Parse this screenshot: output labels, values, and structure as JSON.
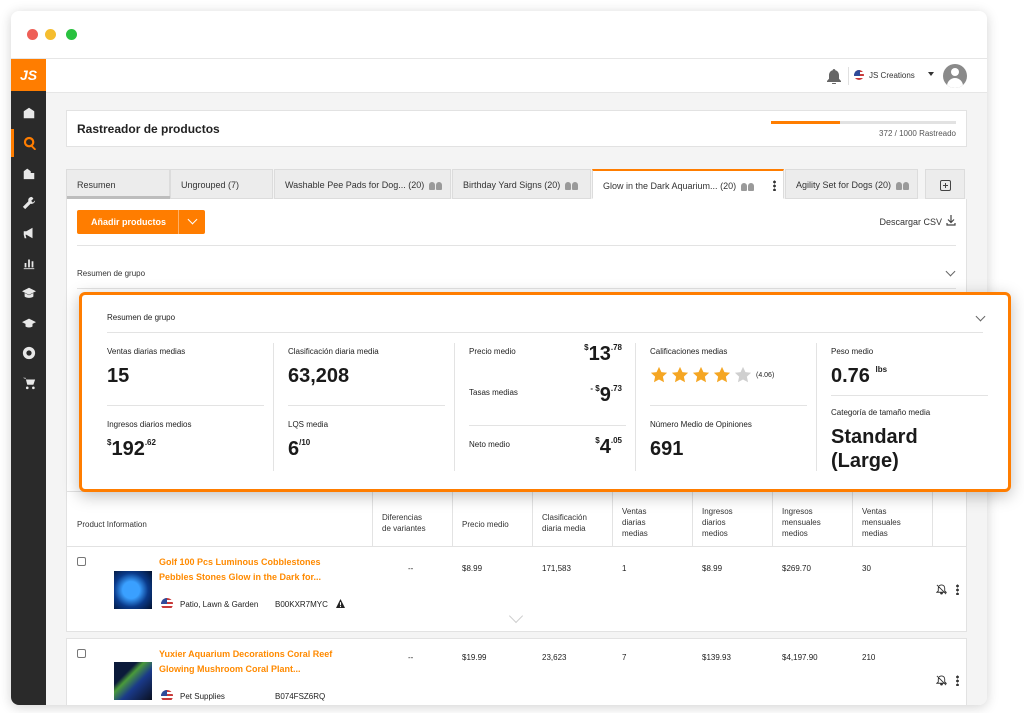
{
  "topbar": {
    "account_name": "JS Creations"
  },
  "page": {
    "title": "Rastreador de productos",
    "tracked_text": "372 / 1000 Rastreado",
    "tracked_fraction": 0.372
  },
  "tabs": [
    {
      "label": "Resumen",
      "count": "",
      "active": false
    },
    {
      "label": "Ungrouped (7)",
      "count": "",
      "active": false
    },
    {
      "label": "Washable Pee Pads for Dog...",
      "count": "(20)",
      "active": false
    },
    {
      "label": "Birthday Yard Signs",
      "count": "(20)",
      "active": false
    },
    {
      "label": "Glow in the Dark Aquarium...",
      "count": "(20)",
      "active": true
    },
    {
      "label": "Agility Set for Dogs",
      "count": "(20)",
      "active": false
    }
  ],
  "toolbar": {
    "add_products": "Añadir productos",
    "download_csv": "Descargar CSV"
  },
  "group_summary_label": "Resumen de grupo",
  "summary_popup": {
    "title": "Resumen de grupo",
    "avg_daily_sales_label": "Ventas diarias medias",
    "avg_daily_sales_value": "15",
    "avg_daily_revenue_label": "Ingresos diarios medios",
    "avg_daily_revenue_currency": "$",
    "avg_daily_revenue_int": "192",
    "avg_daily_revenue_dec": ".62",
    "avg_daily_rank_label": "Clasificación diaria media",
    "avg_daily_rank_value": "63,208",
    "lqs_label": "LQS media",
    "lqs_value": "6",
    "lqs_suffix": "/10",
    "avg_price_label": "Precio medio",
    "avg_price_currency": "$",
    "avg_price_int": "13",
    "avg_price_dec": ".78",
    "avg_fees_label": "Tasas medias",
    "avg_fees_sign": "- $",
    "avg_fees_int": "9",
    "avg_fees_dec": ".73",
    "avg_net_label": "Neto medio",
    "avg_net_currency": "$",
    "avg_net_int": "4",
    "avg_net_dec": ".05",
    "avg_rating_label": "Calificaciones medias",
    "avg_rating_value": 4.06,
    "avg_rating_text": "(4.06)",
    "avg_reviews_label": "Número Medio de Opiniones",
    "avg_reviews_value": "691",
    "avg_weight_label": "Peso medio",
    "avg_weight_value": "0.76",
    "avg_weight_unit": "lbs",
    "avg_size_label": "Categoría de tamaño media",
    "avg_size_value_line1": "Standard",
    "avg_size_value_line2": "(Large)"
  },
  "table": {
    "headers": {
      "product_information": "Product Information",
      "variant_differences": [
        "Diferencias",
        "de variantes"
      ],
      "avg_price": "Precio medio",
      "avg_daily_rank": [
        "Clasificación",
        "diaria media"
      ],
      "avg_daily_sales": [
        "Ventas",
        "diarias",
        "medias"
      ],
      "avg_daily_revenue": [
        "Ingresos",
        "diarios",
        "medios"
      ],
      "avg_monthly_revenue": [
        "Ingresos",
        "mensuales",
        "medios"
      ],
      "avg_monthly_sales": [
        "Ventas",
        "mensuales",
        "medias"
      ]
    },
    "rows": [
      {
        "title_line1": "Golf 100 Pcs Luminous Cobblestones",
        "title_line2": "Pebbles Stones Glow in the Dark for...",
        "category": "Patio, Lawn & Garden",
        "asin": "B00KXR7MYC",
        "variant_diff": "--",
        "price": "$8.99",
        "rank": "171,583",
        "daily_sales": "1",
        "daily_revenue": "$8.99",
        "monthly_revenue": "$269.70",
        "monthly_sales": "30"
      },
      {
        "title_line1": "Yuxier Aquarium Decorations Coral Reef",
        "title_line2": "Glowing Mushroom Coral Plant...",
        "category": "Pet Supplies",
        "asin": "B074FSZ6RQ",
        "variant_diff": "--",
        "price": "$19.99",
        "rank": "23,623",
        "daily_sales": "7",
        "daily_revenue": "$139.93",
        "monthly_revenue": "$4,197.90",
        "monthly_sales": "210"
      }
    ]
  },
  "colors": {
    "accent": "#ff7d00",
    "sidebar": "#2a2a2a",
    "star": "#f5a623"
  },
  "icons": [
    "bell-icon",
    "user-avatar-icon",
    "download-icon",
    "add-tab-icon",
    "warning-icon",
    "bell-off-icon"
  ]
}
